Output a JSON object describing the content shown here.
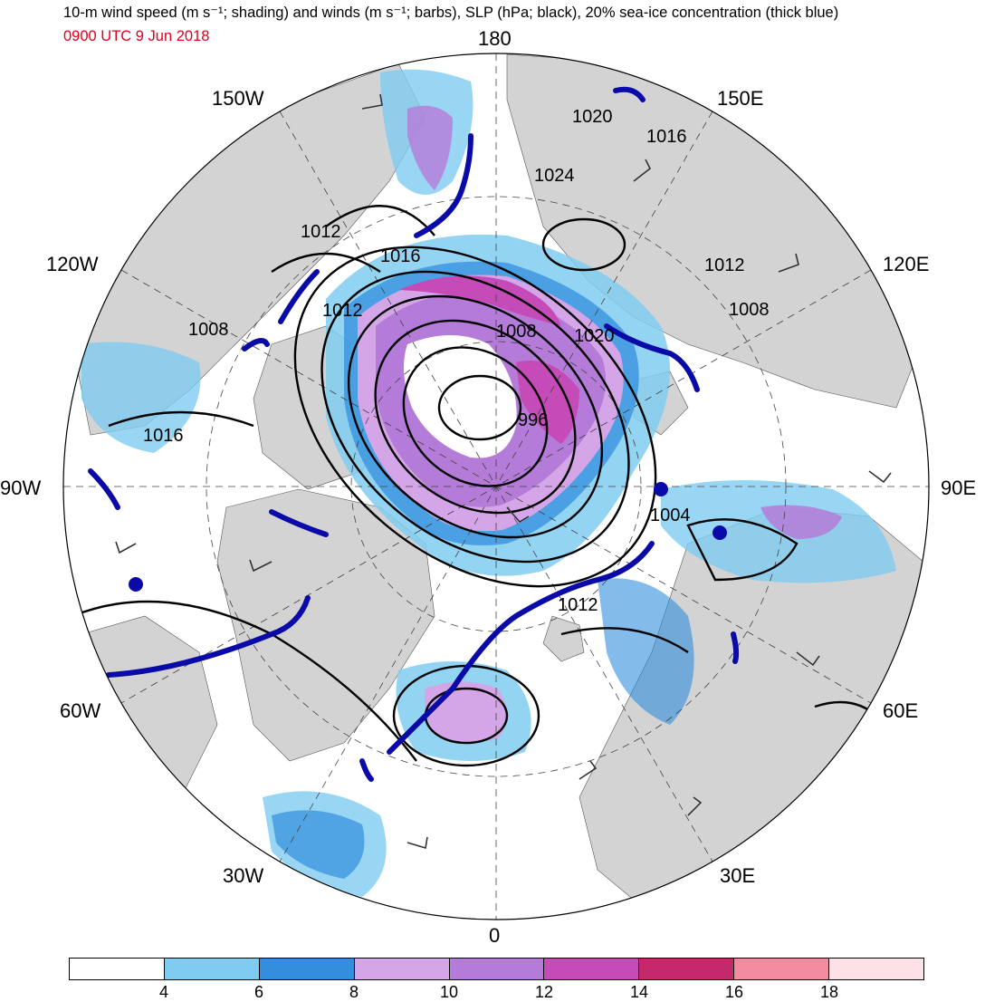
{
  "title": "10-m wind speed (m s⁻¹; shading) and winds (m s⁻¹; barbs), SLP (hPa; black), 20% sea-ice concentration (thick blue)",
  "subtitle": "0900 UTC 9 Jun 2018",
  "colors": {
    "subtitle": "#e0001b",
    "land": "#d3d3d3",
    "ice_edge": "#0a0aa8",
    "slp": "#000000"
  },
  "longitude_labels": {
    "lon_180": "180",
    "lon_150e": "150E",
    "lon_120e": "120E",
    "lon_90e": "90E",
    "lon_60e": "60E",
    "lon_30e": "30E",
    "lon_0": "0",
    "lon_30w": "30W",
    "lon_60w": "60W",
    "lon_90w": "90W",
    "lon_120w": "120W",
    "lon_150w": "150W"
  },
  "slp_labels": [
    "1020",
    "1016",
    "1024",
    "1012",
    "1016",
    "1012",
    "1008",
    "1008",
    "1020",
    "1012",
    "1008",
    "996",
    "1016",
    "1004",
    "1012"
  ],
  "colorbar": {
    "ticks": [
      "4",
      "6",
      "8",
      "10",
      "12",
      "14",
      "16",
      "18"
    ],
    "colors": [
      "#ffffff",
      "#7fccf0",
      "#318fdd",
      "#d4a6e8",
      "#b57bd8",
      "#c54bb8",
      "#c42a6b",
      "#f28c9e",
      "#fde1e6"
    ]
  }
}
